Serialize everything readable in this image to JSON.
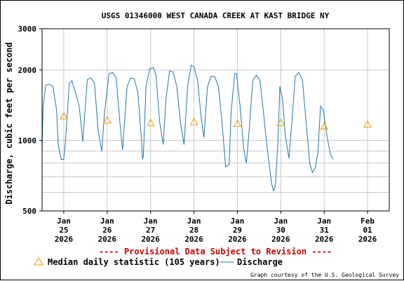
{
  "chart_data": {
    "type": "line",
    "title": "USGS 01346000 WEST CANADA CREEK AT KAST BRIDGE NY",
    "ylabel": "Discharge, cubic feet per second",
    "xlabel": "",
    "y_scale": "log",
    "ylim": [
      500,
      3000
    ],
    "y_ticks": [
      500,
      1000,
      2000,
      3000
    ],
    "y_tick_labels": [
      "500",
      "1000",
      "2000",
      "3000"
    ],
    "xlim": [
      "2026-01-24T12:00",
      "2026-02-01T12:00"
    ],
    "x_ticks": [
      {
        "day": "Jan",
        "num": "25",
        "year": "2026",
        "x": "2026-01-25T00:00"
      },
      {
        "day": "Jan",
        "num": "26",
        "year": "2026",
        "x": "2026-01-26T00:00"
      },
      {
        "day": "Jan",
        "num": "27",
        "year": "2026",
        "x": "2026-01-27T00:00"
      },
      {
        "day": "Jan",
        "num": "28",
        "year": "2026",
        "x": "2026-01-28T00:00"
      },
      {
        "day": "Jan",
        "num": "29",
        "year": "2026",
        "x": "2026-01-29T00:00"
      },
      {
        "day": "Jan",
        "num": "30",
        "year": "2026",
        "x": "2026-01-30T00:00"
      },
      {
        "day": "Jan",
        "num": "31",
        "year": "2026",
        "x": "2026-01-31T00:00"
      },
      {
        "day": "Feb",
        "num": "01",
        "year": "2026",
        "x": "2026-02-01T00:00"
      }
    ],
    "grid": true,
    "series": [
      {
        "name": "Discharge",
        "color": "#1f77b4",
        "points": [
          [
            "2026-01-24T12:00",
            880
          ],
          [
            "2026-01-24T12:30",
            1380
          ],
          [
            "2026-01-24T14:00",
            1720
          ],
          [
            "2026-01-24T16:00",
            1740
          ],
          [
            "2026-01-24T18:00",
            1700
          ],
          [
            "2026-01-24T20:00",
            1350
          ],
          [
            "2026-01-24T21:00",
            950
          ],
          [
            "2026-01-24T22:30",
            830
          ],
          [
            "2026-01-25T00:00",
            830
          ],
          [
            "2026-01-25T01:00",
            1000
          ],
          [
            "2026-01-25T03:00",
            1750
          ],
          [
            "2026-01-25T04:30",
            1800
          ],
          [
            "2026-01-25T06:30",
            1600
          ],
          [
            "2026-01-25T08:30",
            1400
          ],
          [
            "2026-01-25T10:30",
            990
          ],
          [
            "2026-01-25T13:00",
            1820
          ],
          [
            "2026-01-25T15:00",
            1850
          ],
          [
            "2026-01-25T17:00",
            1750
          ],
          [
            "2026-01-25T19:00",
            1100
          ],
          [
            "2026-01-25T21:00",
            900
          ],
          [
            "2026-01-25T22:30",
            1300
          ],
          [
            "2026-01-26T01:00",
            1930
          ],
          [
            "2026-01-26T03:00",
            1950
          ],
          [
            "2026-01-26T05:00",
            1850
          ],
          [
            "2026-01-26T07:00",
            1200
          ],
          [
            "2026-01-26T08:30",
            910
          ],
          [
            "2026-01-26T11:00",
            1700
          ],
          [
            "2026-01-26T13:00",
            1850
          ],
          [
            "2026-01-26T15:00",
            1830
          ],
          [
            "2026-01-26T17:00",
            1600
          ],
          [
            "2026-01-26T19:00",
            1000
          ],
          [
            "2026-01-26T19:30",
            830
          ],
          [
            "2026-01-26T20:00",
            860
          ],
          [
            "2026-01-26T21:30",
            1700
          ],
          [
            "2026-01-26T23:30",
            2020
          ],
          [
            "2026-01-27T01:30",
            2050
          ],
          [
            "2026-01-27T03:00",
            1900
          ],
          [
            "2026-01-27T05:00",
            1200
          ],
          [
            "2026-01-27T07:00",
            960
          ],
          [
            "2026-01-27T08:30",
            1500
          ],
          [
            "2026-01-27T10:30",
            1980
          ],
          [
            "2026-01-27T12:30",
            1960
          ],
          [
            "2026-01-27T14:30",
            1700
          ],
          [
            "2026-01-27T16:30",
            1200
          ],
          [
            "2026-01-27T18:30",
            960
          ],
          [
            "2026-01-27T20:30",
            1700
          ],
          [
            "2026-01-27T22:30",
            2100
          ],
          [
            "2026-01-28T00:00",
            2060
          ],
          [
            "2026-01-28T02:00",
            1800
          ],
          [
            "2026-01-28T04:00",
            1250
          ],
          [
            "2026-01-28T05:30",
            1030
          ],
          [
            "2026-01-28T07:30",
            1700
          ],
          [
            "2026-01-28T09:30",
            1880
          ],
          [
            "2026-01-28T11:30",
            1870
          ],
          [
            "2026-01-28T13:30",
            1700
          ],
          [
            "2026-01-28T15:30",
            1200
          ],
          [
            "2026-01-28T17:30",
            770
          ],
          [
            "2026-01-28T19:30",
            790
          ],
          [
            "2026-01-28T20:30",
            1300
          ],
          [
            "2026-01-28T22:30",
            1930
          ],
          [
            "2026-01-28T23:30",
            1930
          ],
          [
            "2026-01-29T01:30",
            1400
          ],
          [
            "2026-01-29T03:30",
            920
          ],
          [
            "2026-01-29T05:00",
            800
          ],
          [
            "2026-01-29T06:30",
            1100
          ],
          [
            "2026-01-29T08:30",
            1800
          ],
          [
            "2026-01-29T10:30",
            1900
          ],
          [
            "2026-01-29T12:30",
            1800
          ],
          [
            "2026-01-29T14:30",
            1300
          ],
          [
            "2026-01-29T16:00",
            1000
          ],
          [
            "2026-01-29T17:30",
            800
          ],
          [
            "2026-01-29T19:00",
            650
          ],
          [
            "2026-01-29T20:00",
            610
          ],
          [
            "2026-01-29T21:00",
            640
          ],
          [
            "2026-01-29T22:30",
            1000
          ],
          [
            "2026-01-29T23:30",
            1700
          ],
          [
            "2026-01-30T01:00",
            1500
          ],
          [
            "2026-01-30T02:30",
            1050
          ],
          [
            "2026-01-30T04:30",
            840
          ],
          [
            "2026-01-30T06:30",
            1300
          ],
          [
            "2026-01-30T08:00",
            1880
          ],
          [
            "2026-01-30T10:00",
            1950
          ],
          [
            "2026-01-30T12:00",
            1800
          ],
          [
            "2026-01-30T14:00",
            1200
          ],
          [
            "2026-01-30T16:00",
            800
          ],
          [
            "2026-01-30T17:30",
            730
          ],
          [
            "2026-01-30T19:00",
            760
          ],
          [
            "2026-01-30T20:30",
            880
          ],
          [
            "2026-01-30T22:00",
            1400
          ],
          [
            "2026-01-30T23:30",
            1350
          ],
          [
            "2026-01-31T01:30",
            1050
          ],
          [
            "2026-01-31T03:30",
            870
          ],
          [
            "2026-01-31T05:00",
            830
          ]
        ]
      },
      {
        "name": "Median daily statistic (105 years)",
        "color": "#e8a000",
        "marker": "triangle",
        "points": [
          [
            "2026-01-25T00:00",
            1270
          ],
          [
            "2026-01-26T00:00",
            1220
          ],
          [
            "2026-01-27T00:00",
            1190
          ],
          [
            "2026-01-28T00:00",
            1200
          ],
          [
            "2026-01-29T00:00",
            1180
          ],
          [
            "2026-01-30T00:00",
            1190
          ],
          [
            "2026-01-31T00:00",
            1150
          ],
          [
            "2026-02-01T00:00",
            1170
          ]
        ]
      }
    ],
    "provisional_note": "---- Provisional Data Subject to Revision ----",
    "legend": {
      "placement": "bottom-left",
      "items": [
        {
          "label": "Median daily statistic (105 years)",
          "marker": "triangle",
          "color": "#e8a000"
        },
        {
          "label": "Discharge",
          "marker": "line",
          "color": "#1f77b4"
        }
      ]
    },
    "credit": "Graph courtesy of the U.S. Geological Survey"
  }
}
